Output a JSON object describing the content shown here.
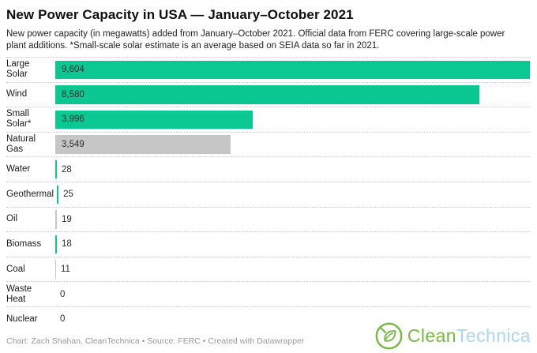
{
  "header": {
    "title": "New Power Capacity in USA — January–October 2021",
    "description": "New power capacity (in megawatts) added from January–October 2021. Official data from FERC covering large-scale power plant additions. *Small-scale solar estimate is an average based on SEIA data so far in 2021."
  },
  "chart_data": {
    "type": "bar",
    "orientation": "horizontal",
    "unit": "megawatts",
    "title": "New Power Capacity in USA — January–October 2021",
    "xlim": [
      0,
      9604
    ],
    "grid": false,
    "legend": "none",
    "categories": [
      "Large Solar",
      "Wind",
      "Small Solar*",
      "Natural Gas",
      "Water",
      "Geothermal",
      "Oil",
      "Biomass",
      "Coal",
      "Waste Heat",
      "Nuclear"
    ],
    "values": [
      9604,
      8580,
      3996,
      3549,
      28,
      25,
      19,
      18,
      11,
      0,
      0
    ],
    "value_labels": [
      "9,604",
      "8,580",
      "3,996",
      "3,549",
      "28",
      "25",
      "19",
      "18",
      "11",
      "0",
      "0"
    ],
    "bar_color_keys": [
      "green",
      "green",
      "green",
      "gray",
      "green",
      "green",
      "gray",
      "green",
      "gray",
      "none",
      "none"
    ]
  },
  "colors": {
    "bar_green": "#0bc792",
    "bar_gray": "#c6c6c6",
    "separator": "#c9c9c9"
  },
  "footer": {
    "byline": "Chart: Zach Shahan, CleanTechnica • Source: FERC • Created with Datawrapper"
  },
  "logo": {
    "icon": "cleantechnica-leaf-plug-icon",
    "text_primary": "Clean",
    "text_secondary": "Technica",
    "green": "#77b843",
    "blue": "#a8d6f2"
  }
}
